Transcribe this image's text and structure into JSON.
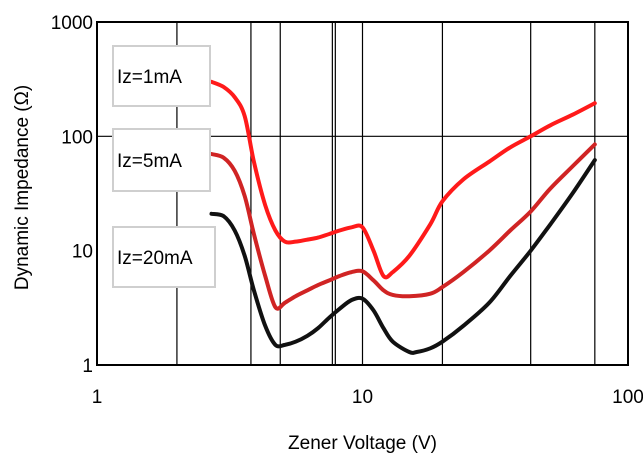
{
  "chart_data": {
    "type": "line",
    "xlabel": "Zener Voltage (V)",
    "ylabel": "Dynamic Impedance (Ω)",
    "x_scale": "log",
    "y_scale": "log",
    "xlim": [
      1,
      100
    ],
    "ylim": [
      1,
      1000
    ],
    "x_ticks": [
      {
        "value": 1,
        "label": "1"
      },
      {
        "value": 10,
        "label": "10"
      },
      {
        "value": 100,
        "label": "100"
      }
    ],
    "y_ticks": [
      {
        "value": 1,
        "label": "1"
      },
      {
        "value": 10,
        "label": "10"
      },
      {
        "value": 100,
        "label": "100"
      },
      {
        "value": 1000,
        "label": "1000"
      }
    ],
    "grid": {
      "vertical": [
        2,
        3.8,
        4.9,
        7.7,
        7.9,
        10,
        20,
        43,
        75,
        100
      ],
      "horizontal": [
        100
      ]
    },
    "series": [
      {
        "name": "Iz=1mA",
        "color": "#ff1a1a",
        "x": [
          2.7,
          3.0,
          3.3,
          3.6,
          3.9,
          4.3,
          4.7,
          5.1,
          5.6,
          6.2,
          6.8,
          7.5,
          8.2,
          9.1,
          10,
          11,
          12,
          13,
          15,
          18,
          20,
          24,
          30,
          36,
          43,
          51,
          62,
          75
        ],
        "y": [
          300,
          270,
          220,
          150,
          60,
          25,
          15,
          12,
          12,
          12.5,
          13,
          14,
          15,
          16,
          16,
          10,
          6,
          6.5,
          9,
          17,
          27,
          42,
          60,
          80,
          100,
          125,
          155,
          195
        ]
      },
      {
        "name": "Iz=5mA",
        "color": "#d02424",
        "x": [
          2.7,
          3.0,
          3.3,
          3.6,
          3.9,
          4.3,
          4.7,
          5.1,
          5.6,
          6.2,
          6.8,
          7.5,
          8.2,
          9.1,
          10,
          11,
          12,
          13,
          15,
          18,
          20,
          24,
          30,
          36,
          43,
          51,
          62,
          75
        ],
        "y": [
          70,
          65,
          50,
          30,
          14,
          6,
          3.2,
          3.5,
          4,
          4.5,
          5,
          5.5,
          6,
          6.5,
          6.6,
          5.5,
          4.5,
          4.1,
          4.0,
          4.2,
          4.8,
          6.5,
          10,
          15,
          22,
          35,
          55,
          85
        ]
      },
      {
        "name": "Iz=20mA",
        "color": "#111111",
        "x": [
          2.7,
          3.0,
          3.3,
          3.6,
          3.9,
          4.3,
          4.7,
          5.1,
          5.6,
          6.2,
          6.8,
          7.5,
          8.2,
          9.1,
          10,
          11,
          12,
          13,
          15,
          16,
          18,
          20,
          24,
          30,
          36,
          43,
          51,
          62,
          75
        ],
        "y": [
          21,
          20,
          15,
          9,
          4.5,
          2.2,
          1.5,
          1.5,
          1.6,
          1.8,
          2.1,
          2.6,
          3.1,
          3.7,
          3.8,
          3.0,
          2.1,
          1.6,
          1.3,
          1.3,
          1.4,
          1.6,
          2.2,
          3.5,
          6,
          10,
          17,
          32,
          62
        ]
      }
    ],
    "legend_labels": [
      "Iz=1mA",
      "Iz=5mA",
      "Iz=20mA"
    ]
  }
}
